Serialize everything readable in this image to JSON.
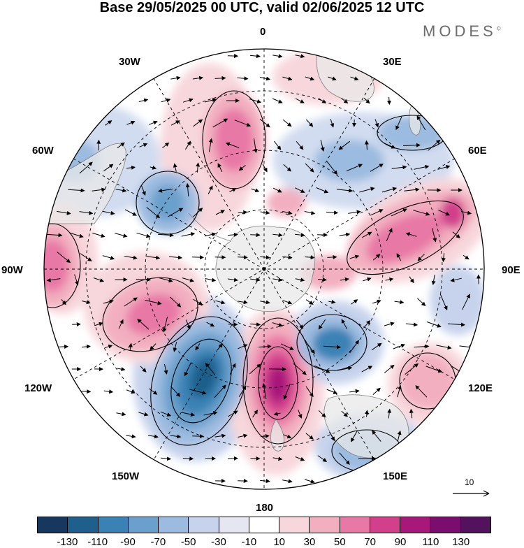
{
  "title": "Base 29/05/2025 00 UTC, valid 02/06/2025 12 UTC",
  "brand": "MODES",
  "brand_mark": "©",
  "longitude_labels": {
    "lon_0": "0",
    "lon_30e": "30E",
    "lon_60e": "60E",
    "lon_90e": "90E",
    "lon_120e": "120E",
    "lon_150e": "150E",
    "lon_180": "180",
    "lon_150w": "150W",
    "lon_120w": "120W",
    "lon_90w": "90W",
    "lon_60w": "60W",
    "lon_30w": "30W"
  },
  "vector_key": {
    "label": "10"
  },
  "legend": {
    "ticks": [
      "-130",
      "-110",
      "-90",
      "-70",
      "-50",
      "-30",
      "-10",
      "10",
      "30",
      "50",
      "70",
      "90",
      "110",
      "130"
    ],
    "colors": [
      "#17375e",
      "#1f5f8b",
      "#3a82b5",
      "#6aa0cc",
      "#9cbbe0",
      "#c7d3ec",
      "#e6e6f2",
      "#ffffff",
      "#f7d7dc",
      "#f2afc0",
      "#e878a6",
      "#d2408c",
      "#a8177a",
      "#7a0d6e",
      "#52125e"
    ]
  },
  "colors": {
    "land": "#e8e8e8",
    "coast": "#808080",
    "grid": "#000000"
  }
}
